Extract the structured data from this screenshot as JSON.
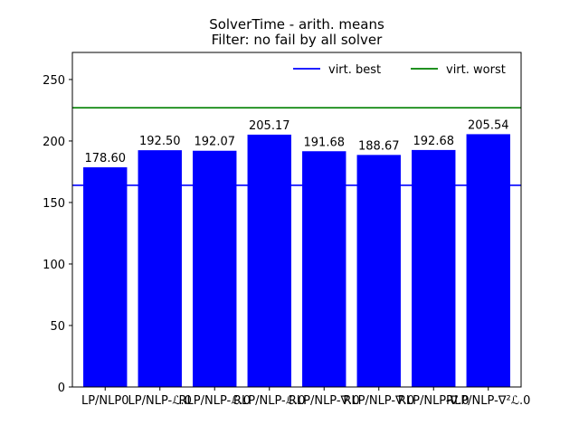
{
  "chart_data": {
    "type": "bar",
    "title": "SolverTime - arith. means",
    "subtitle": "Filter: no fail by all solver",
    "xlabel": "",
    "ylabel": "",
    "ylim": [
      0,
      272
    ],
    "yticks": [
      0,
      50,
      100,
      150,
      200,
      250
    ],
    "categories": [
      "LP/NLP0",
      "LP/NLP-ℒ.0",
      "RLP/NLP-ℒ.0",
      "RLP/NLP-ℒ.0",
      "RLP/NLP-∇.0",
      "RLP/NLP-∇.0",
      "RLP/NLP-∇.0",
      "RLP/NLP-∇²ℒ.0"
    ],
    "series": [
      {
        "values": [
          178.6,
          192.5,
          192.07,
          205.17,
          191.68,
          188.67,
          192.68,
          205.54
        ],
        "labels": [
          "178.60",
          "192.50",
          "192.07",
          "205.17",
          "191.68",
          "188.67",
          "192.68",
          "205.54"
        ],
        "color": "#0000ff"
      }
    ],
    "reference_lines": [
      {
        "name": "virt. best",
        "value": 164,
        "color": "#0000ff"
      },
      {
        "name": "virt. worst",
        "value": 227,
        "color": "#008000"
      }
    ],
    "legend_position": "top-right",
    "grid": false
  }
}
